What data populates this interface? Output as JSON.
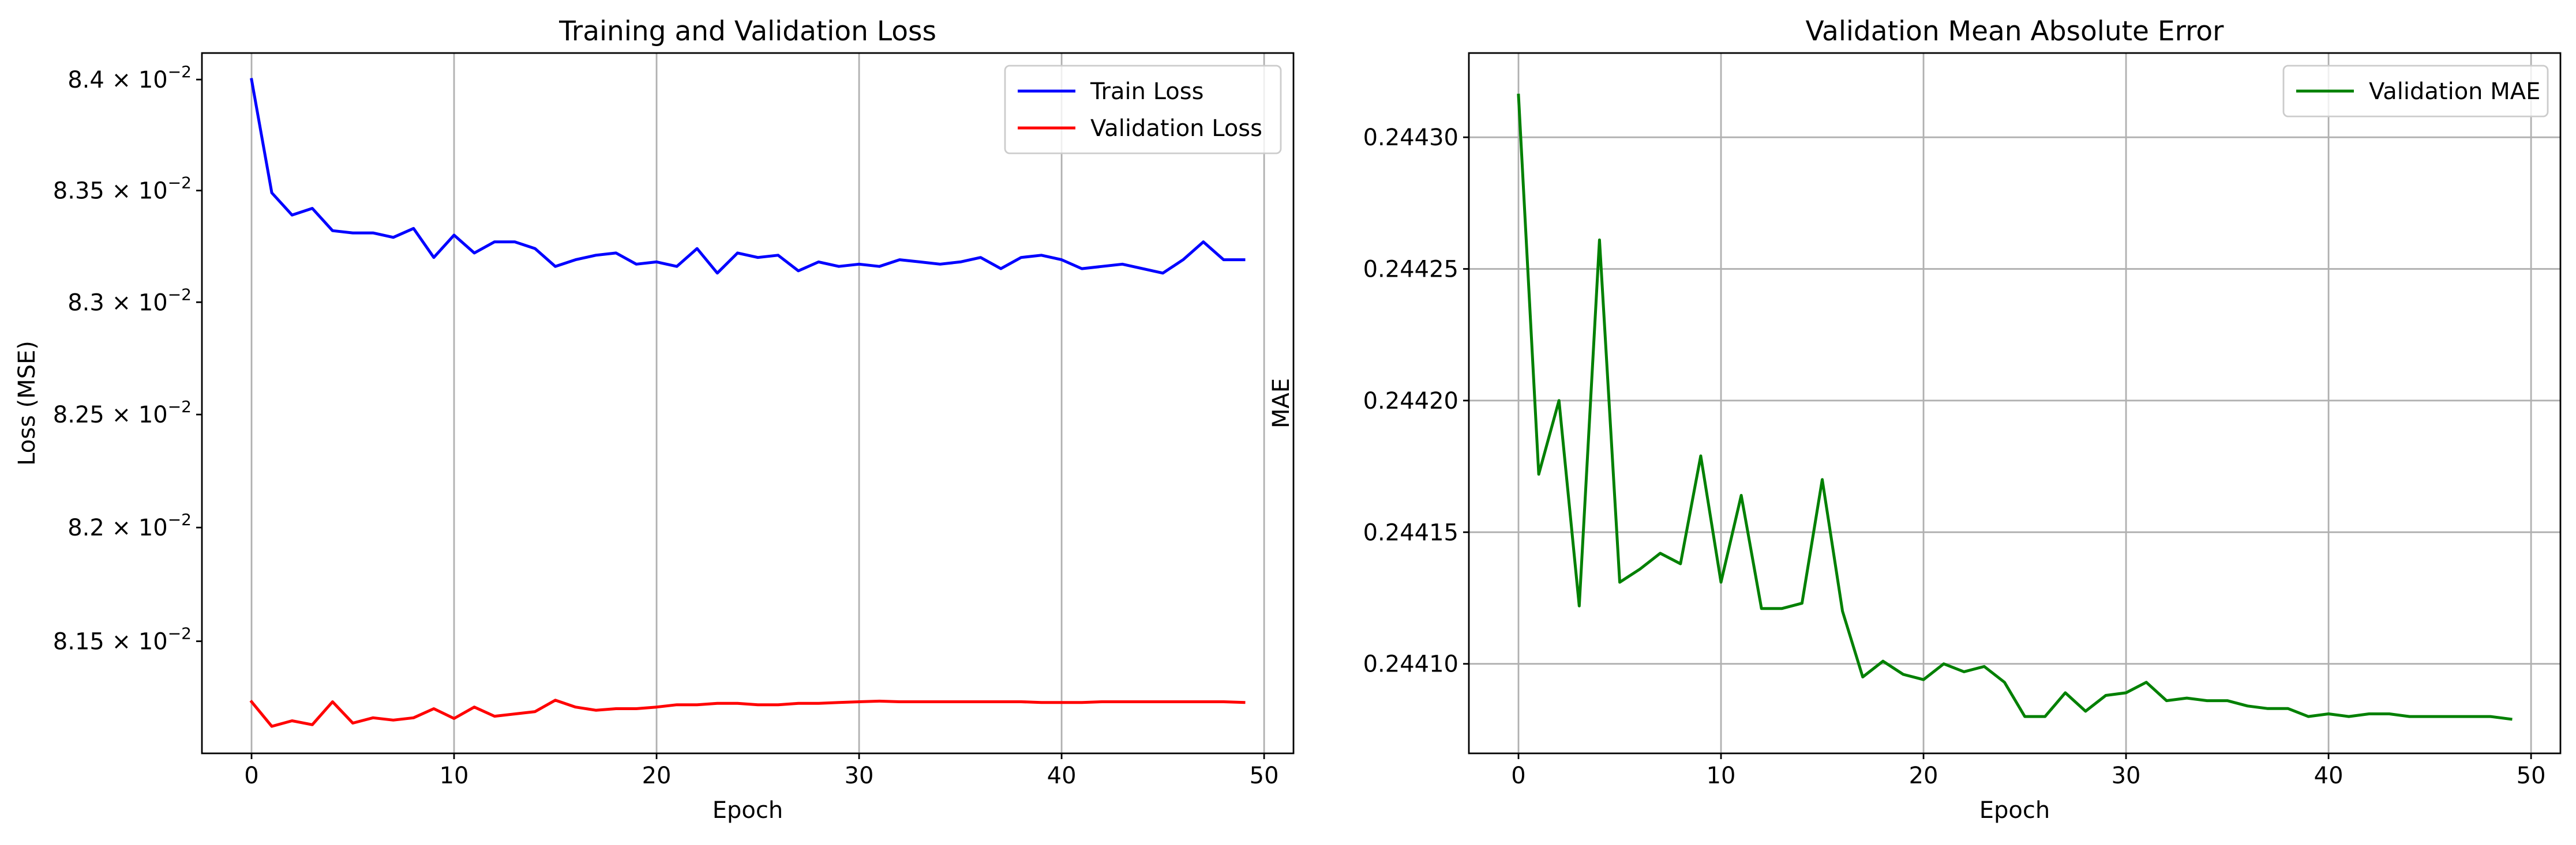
{
  "chart_data": [
    {
      "type": "line",
      "title": "Training and Validation Loss",
      "xlabel": "Epoch",
      "ylabel": "Loss (MSE)",
      "yscale": "log",
      "xlim": [
        -2.45,
        51.45
      ],
      "ylim": [
        0.08101,
        0.08412
      ],
      "grid": "x",
      "legend": "top-right",
      "x_ticks": [
        0,
        10,
        20,
        30,
        40,
        50
      ],
      "x_tick_labels": [
        "0",
        "10",
        "20",
        "30",
        "40",
        "50"
      ],
      "y_ticks": [
        0.0815,
        0.082,
        0.0825,
        0.083,
        0.0835,
        0.084
      ],
      "y_tick_labels": [
        {
          "mantissa": "8.15",
          "base": "10",
          "exp": "−2"
        },
        {
          "mantissa": "8.2",
          "base": "10",
          "exp": "−2"
        },
        {
          "mantissa": "8.25",
          "base": "10",
          "exp": "−2"
        },
        {
          "mantissa": "8.3",
          "base": "10",
          "exp": "−2"
        },
        {
          "mantissa": "8.35",
          "base": "10",
          "exp": "−2"
        },
        {
          "mantissa": "8.4",
          "base": "10",
          "exp": "−2"
        }
      ],
      "x": [
        0,
        1,
        2,
        3,
        4,
        5,
        6,
        7,
        8,
        9,
        10,
        11,
        12,
        13,
        14,
        15,
        16,
        17,
        18,
        19,
        20,
        21,
        22,
        23,
        24,
        25,
        26,
        27,
        28,
        29,
        30,
        31,
        32,
        33,
        34,
        35,
        36,
        37,
        38,
        39,
        40,
        41,
        42,
        43,
        44,
        45,
        46,
        47,
        48,
        49
      ],
      "series": [
        {
          "name": "Train Loss",
          "color": "#0000ff",
          "values": [
            0.084,
            0.08349,
            0.08339,
            0.08342,
            0.08332,
            0.08331,
            0.08331,
            0.08329,
            0.08333,
            0.0832,
            0.0833,
            0.08322,
            0.08327,
            0.08327,
            0.08324,
            0.08316,
            0.08319,
            0.08321,
            0.08322,
            0.08317,
            0.08318,
            0.08316,
            0.08324,
            0.08313,
            0.08322,
            0.0832,
            0.08321,
            0.08314,
            0.08318,
            0.08316,
            0.08317,
            0.08316,
            0.08319,
            0.08318,
            0.08317,
            0.08318,
            0.0832,
            0.08315,
            0.0832,
            0.08321,
            0.08319,
            0.08315,
            0.08316,
            0.08317,
            0.08315,
            0.08313,
            0.08319,
            0.08327,
            0.08319,
            0.08319
          ]
        },
        {
          "name": "Validation Loss",
          "color": "#ff0000",
          "values": [
            0.081235,
            0.081128,
            0.081152,
            0.081135,
            0.081235,
            0.081142,
            0.081165,
            0.081155,
            0.081165,
            0.081205,
            0.081162,
            0.081212,
            0.081172,
            0.081182,
            0.081192,
            0.081242,
            0.081212,
            0.081198,
            0.081205,
            0.081205,
            0.081212,
            0.081222,
            0.081222,
            0.081228,
            0.081228,
            0.081222,
            0.081222,
            0.081228,
            0.081228,
            0.081232,
            0.081235,
            0.081238,
            0.081235,
            0.081235,
            0.081235,
            0.081235,
            0.081235,
            0.081235,
            0.081235,
            0.081232,
            0.081232,
            0.081232,
            0.081235,
            0.081235,
            0.081235,
            0.081235,
            0.081235,
            0.081235,
            0.081235,
            0.081232
          ]
        }
      ]
    },
    {
      "type": "line",
      "title": "Validation Mean Absolute Error",
      "xlabel": "Epoch",
      "ylabel": "MAE",
      "xlim": [
        -2.45,
        51.45
      ],
      "ylim": [
        0.244066,
        0.244332
      ],
      "grid": "both",
      "legend": "top-right",
      "x_ticks": [
        0,
        10,
        20,
        30,
        40,
        50
      ],
      "x_tick_labels": [
        "0",
        "10",
        "20",
        "30",
        "40",
        "50"
      ],
      "y_ticks": [
        0.2441,
        0.24415,
        0.2442,
        0.24425,
        0.2443
      ],
      "y_tick_labels": [
        "0.24410",
        "0.24415",
        "0.24420",
        "0.24425",
        "0.24430"
      ],
      "x": [
        0,
        1,
        2,
        3,
        4,
        5,
        6,
        7,
        8,
        9,
        10,
        11,
        12,
        13,
        14,
        15,
        16,
        17,
        18,
        19,
        20,
        21,
        22,
        23,
        24,
        25,
        26,
        27,
        28,
        29,
        30,
        31,
        32,
        33,
        34,
        35,
        36,
        37,
        38,
        39,
        40,
        41,
        42,
        43,
        44,
        45,
        46,
        47,
        48,
        49
      ],
      "series": [
        {
          "name": "Validation MAE",
          "color": "#008000",
          "values": [
            0.244316,
            0.244172,
            0.2442,
            0.244122,
            0.244261,
            0.244131,
            0.244136,
            0.244142,
            0.244138,
            0.244179,
            0.244131,
            0.244164,
            0.244121,
            0.244121,
            0.244123,
            0.24417,
            0.24412,
            0.244095,
            0.244101,
            0.244096,
            0.244094,
            0.2441,
            0.244097,
            0.244099,
            0.244093,
            0.24408,
            0.24408,
            0.244089,
            0.244082,
            0.244088,
            0.244089,
            0.244093,
            0.244086,
            0.244087,
            0.244086,
            0.244086,
            0.244084,
            0.244083,
            0.244083,
            0.24408,
            0.244081,
            0.24408,
            0.244081,
            0.244081,
            0.24408,
            0.24408,
            0.24408,
            0.24408,
            0.24408,
            0.244079
          ]
        }
      ]
    }
  ]
}
